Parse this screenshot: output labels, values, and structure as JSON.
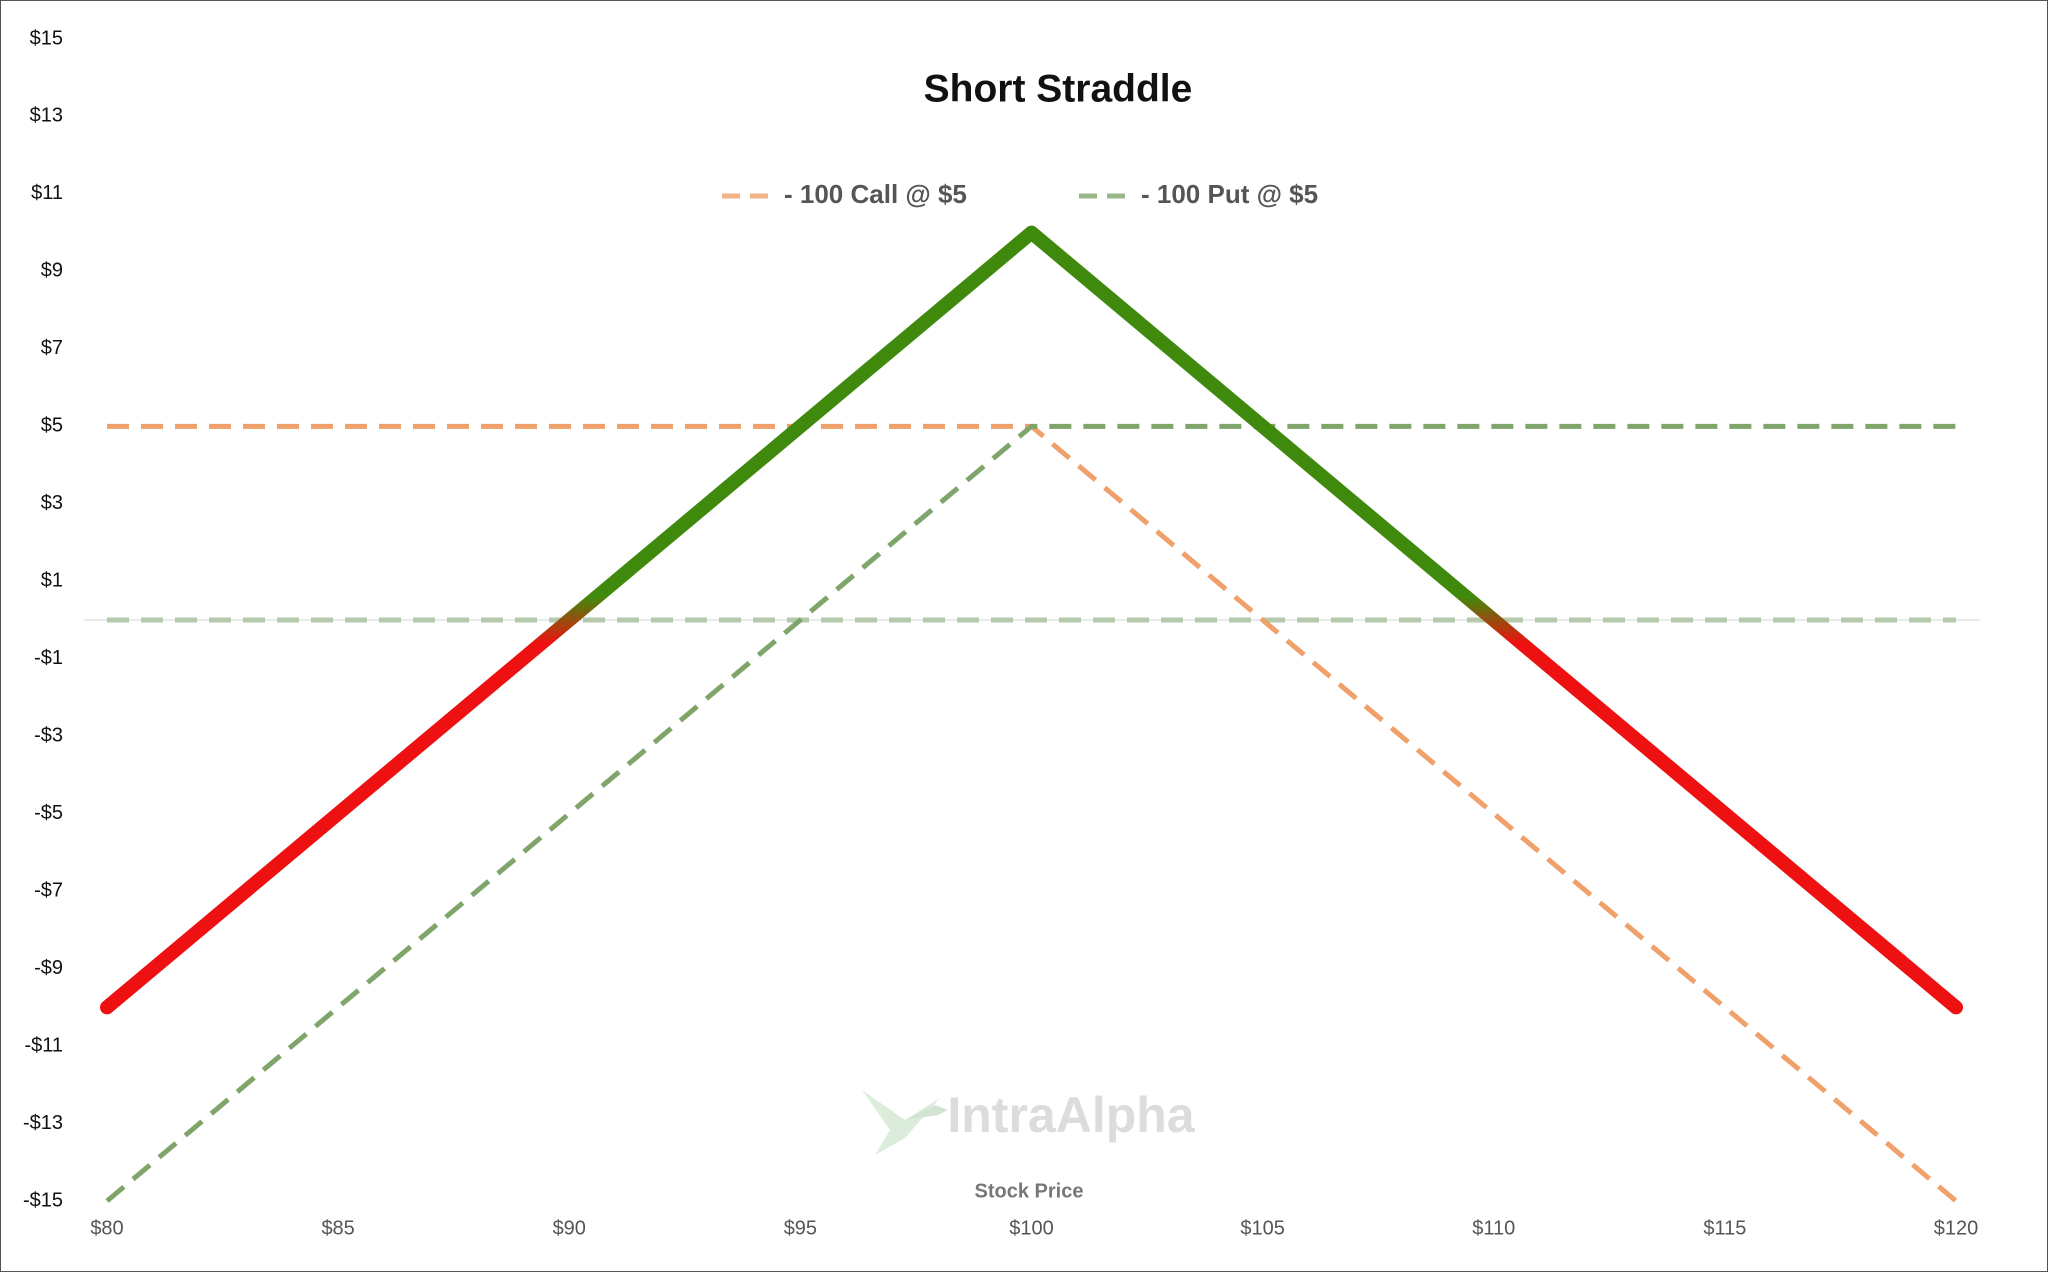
{
  "chart_data": {
    "type": "line",
    "title": "Short Straddle",
    "x_label": "Stock Price",
    "watermark": "IntraAlpha",
    "x": [
      80,
      100,
      120
    ],
    "series": [
      {
        "name": "- 100 Call @ $5",
        "color": "#f0a06a",
        "dashed": true,
        "values": [
          5,
          5,
          -15
        ]
      },
      {
        "name": "- 100 Put @ $5",
        "color": "#7fa56a",
        "dashed": true,
        "values": [
          -15,
          5,
          5
        ]
      },
      {
        "color": "#3f8a0c",
        "negative_color": "#ee1111",
        "dashed": false,
        "values": [
          -10,
          10,
          -10
        ]
      }
    ],
    "xlim": [
      80,
      120
    ],
    "xticks": [
      {
        "value": 80,
        "label": "$80"
      },
      {
        "value": 85,
        "label": "$85"
      },
      {
        "value": 90,
        "label": "$90"
      },
      {
        "value": 95,
        "label": "$95"
      },
      {
        "value": 100,
        "label": "$100"
      },
      {
        "value": 105,
        "label": "$105"
      },
      {
        "value": 110,
        "label": "$110"
      },
      {
        "value": 115,
        "label": "$115"
      },
      {
        "value": 120,
        "label": "$120"
      }
    ],
    "ylim": [
      -15,
      15
    ],
    "yticks": [
      {
        "value": 15,
        "label": "$15"
      },
      {
        "value": 13,
        "label": "$13"
      },
      {
        "value": 11,
        "label": "$11"
      },
      {
        "value": 9,
        "label": "$9"
      },
      {
        "value": 7,
        "label": "$7"
      },
      {
        "value": 5,
        "label": "$5"
      },
      {
        "value": 3,
        "label": "$3"
      },
      {
        "value": 1,
        "label": "$1"
      },
      {
        "value": -1,
        "label": "-$1"
      },
      {
        "value": -3,
        "label": "-$3"
      },
      {
        "value": -5,
        "label": "-$5"
      },
      {
        "value": -7,
        "label": "-$7"
      },
      {
        "value": -9,
        "label": "-$9"
      },
      {
        "value": -11,
        "label": "-$11"
      },
      {
        "value": -13,
        "label": "-$13"
      },
      {
        "value": -15,
        "label": "-$15"
      }
    ],
    "legend": "top",
    "zero_line": true
  }
}
